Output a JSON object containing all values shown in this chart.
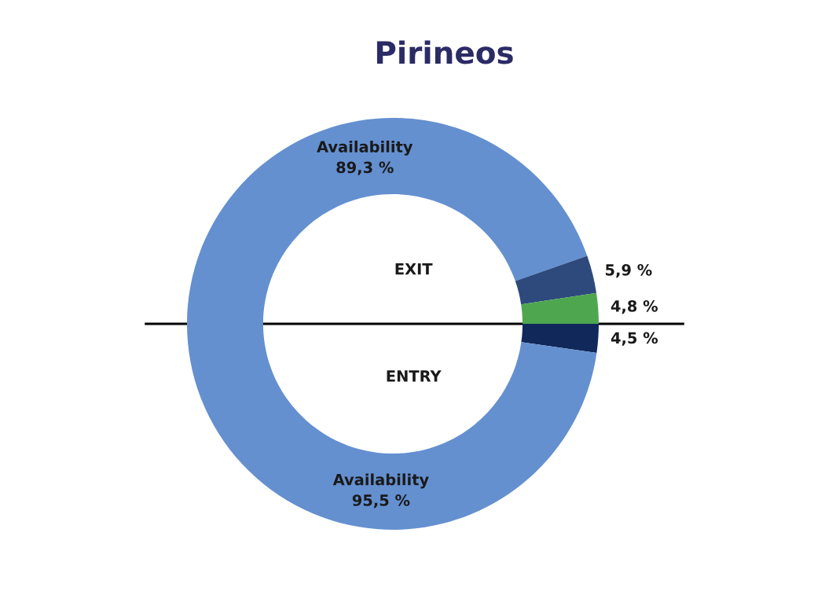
{
  "chart_data": {
    "type": "donut",
    "title": "Pirineos",
    "annotations": [
      {
        "text": "EXIT"
      },
      {
        "text": "ENTRY"
      }
    ],
    "categories": [
      "Availability",
      null,
      null,
      null,
      "Availability"
    ],
    "values": [
      89.3,
      5.9,
      4.8,
      4.5,
      95.5
    ],
    "value_labels": [
      "89,3 %",
      "5,9 %",
      "4,8 %",
      "4,5 %",
      "95,5 %"
    ],
    "colors": [
      "#6490d0",
      "#2e4a7d",
      "#4ea64e",
      "#10285a",
      "#6490d0"
    ]
  }
}
